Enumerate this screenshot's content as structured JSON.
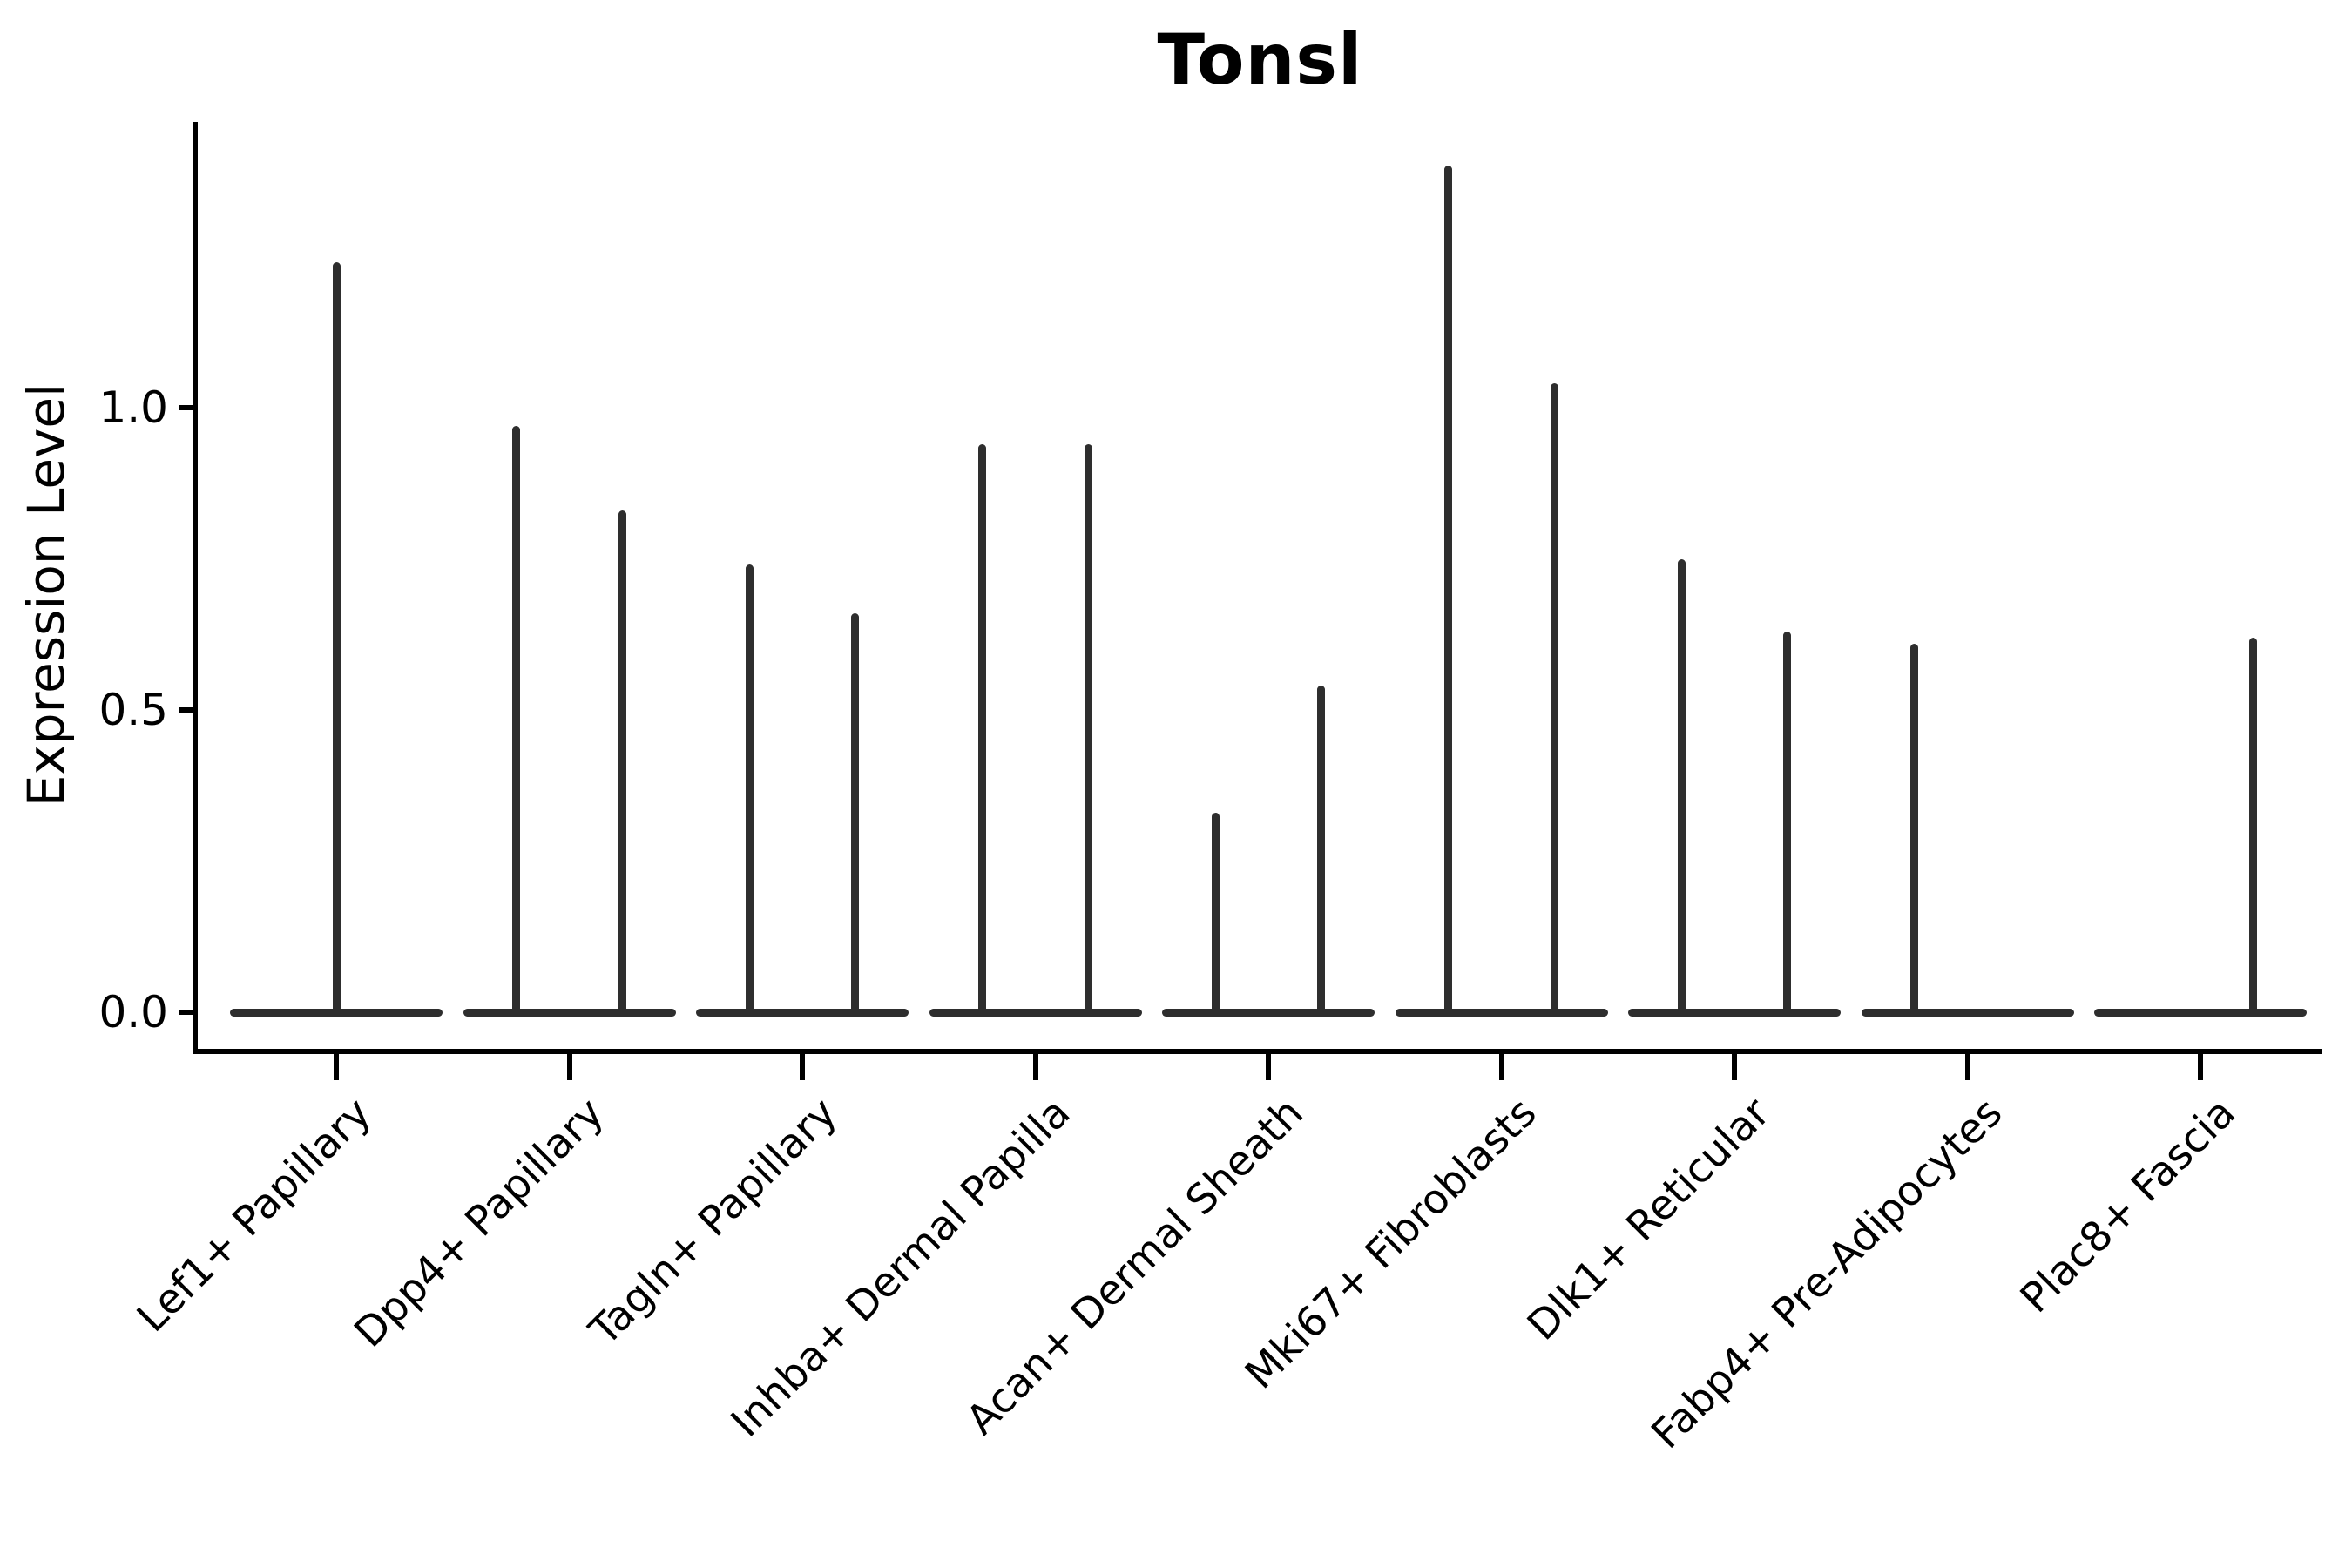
{
  "chart_data": {
    "type": "violin",
    "title": "Tonsl",
    "ylabel": "Expression Level",
    "xlabel": "",
    "grid": false,
    "legend": "none",
    "yticks": [
      {
        "label": "0.0",
        "value": 0.0
      },
      {
        "label": "0.5",
        "value": 0.5
      },
      {
        "label": "1.0",
        "value": 1.0
      }
    ],
    "ylim": [
      -0.07,
      1.5
    ],
    "categories": [
      {
        "label": "Lef1+ Papillary",
        "violins": [
          {
            "position": "center",
            "peak": 1.24
          }
        ]
      },
      {
        "label": "Dpp4+ Papillary",
        "violins": [
          {
            "position": "left",
            "peak": 0.97
          },
          {
            "position": "right",
            "peak": 0.83
          }
        ]
      },
      {
        "label": "Tagln+ Papillary",
        "violins": [
          {
            "position": "left",
            "peak": 0.74
          },
          {
            "position": "right",
            "peak": 0.66
          }
        ]
      },
      {
        "label": "Inhba+ Dermal Papilla",
        "violins": [
          {
            "position": "left",
            "peak": 0.94
          },
          {
            "position": "right",
            "peak": 0.94
          }
        ]
      },
      {
        "label": "Acan+ Dermal Sheath",
        "violins": [
          {
            "position": "left",
            "peak": 0.33
          },
          {
            "position": "right",
            "peak": 0.54
          }
        ]
      },
      {
        "label": "Mki67+ Fibroblasts",
        "violins": [
          {
            "position": "left",
            "peak": 1.4
          },
          {
            "position": "right",
            "peak": 1.04
          }
        ]
      },
      {
        "label": "Dlk1+ Reticular",
        "violins": [
          {
            "position": "left",
            "peak": 0.75
          },
          {
            "position": "right",
            "peak": 0.63
          }
        ]
      },
      {
        "label": "Fabp4+ Pre-Adipocytes",
        "violins": [
          {
            "position": "left",
            "peak": 0.61
          }
        ]
      },
      {
        "label": "Plac8+ Fascia",
        "violins": [
          {
            "position": "right",
            "peak": 0.62
          }
        ]
      }
    ],
    "colors": {
      "violin": "#2e2e2e",
      "axis": "#000000",
      "text": "#000000",
      "background": "#ffffff"
    }
  }
}
